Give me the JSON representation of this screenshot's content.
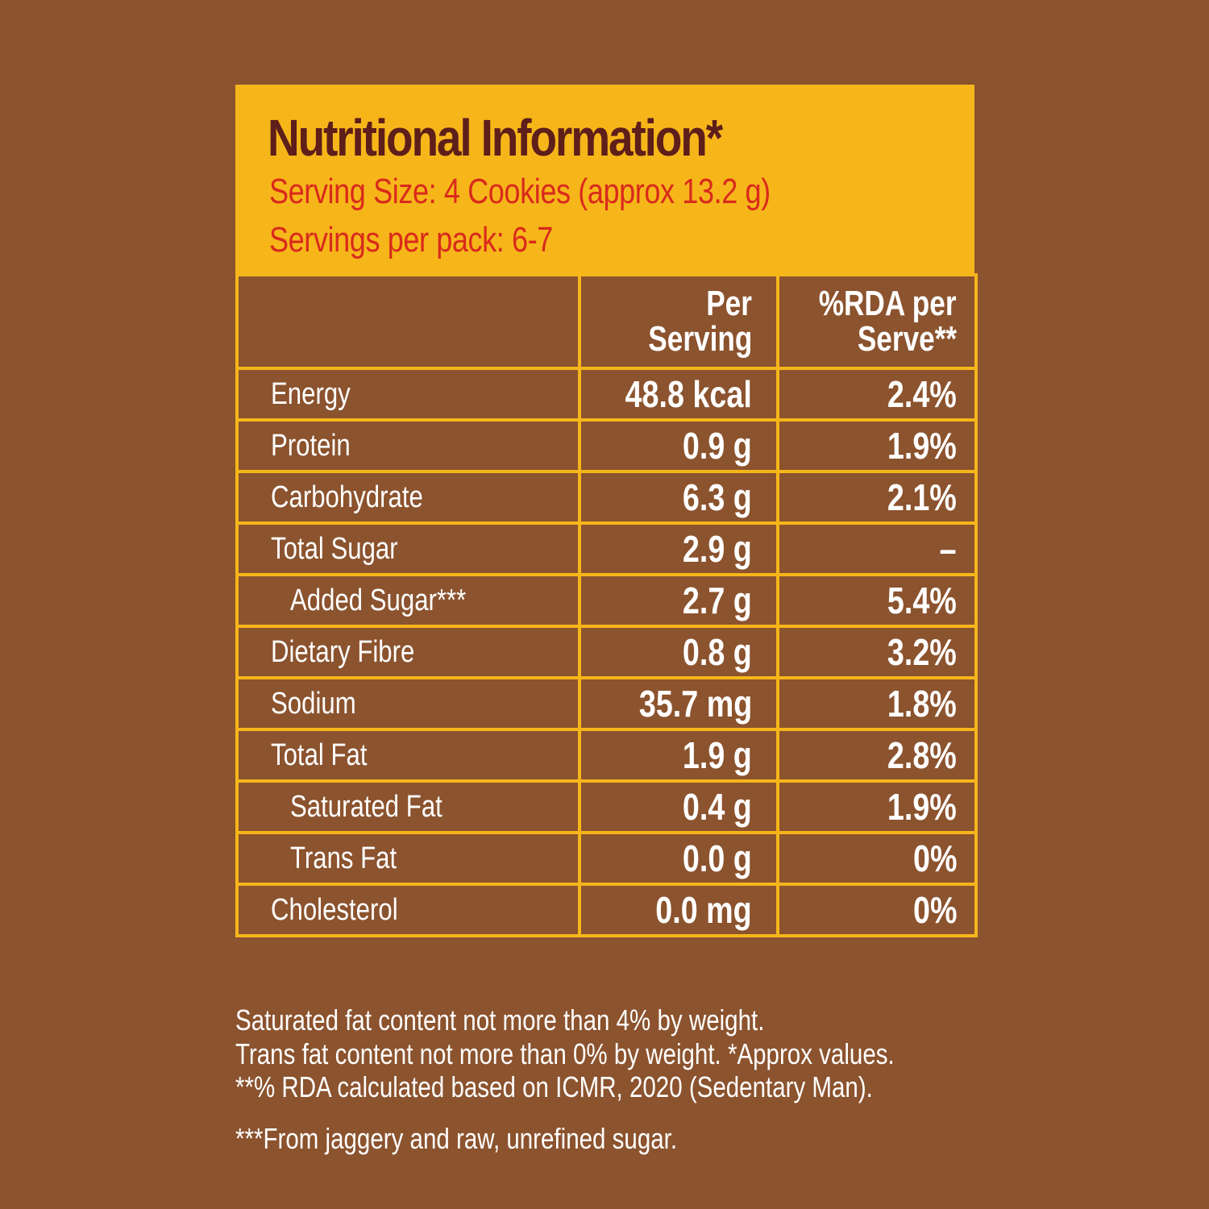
{
  "header": {
    "title": "Nutritional Information*",
    "serving_size": "Serving Size: 4 Cookies (approx 13.2 g)",
    "servings_per_pack": "Servings per pack: 6-7"
  },
  "table": {
    "columns": [
      "",
      "Per Serving",
      "%RDA per Serve**"
    ],
    "col2_line1": "Per",
    "col2_line2": "Serving",
    "col3_line1": "%RDA per",
    "col3_line2": "Serve**",
    "rows": [
      {
        "name": "Energy",
        "per_serving": "48.8 kcal",
        "rda": "2.4%"
      },
      {
        "name": "Protein",
        "per_serving": "0.9 g",
        "rda": "1.9%"
      },
      {
        "name": "Carbohydrate",
        "per_serving": "6.3 g",
        "rda": "2.1%"
      },
      {
        "name": "Total Sugar",
        "per_serving": "2.9 g",
        "rda": "–"
      },
      {
        "name": "Added Sugar***",
        "per_serving": "2.7 g",
        "rda": "5.4%"
      },
      {
        "name": "Dietary Fibre",
        "per_serving": "0.8 g",
        "rda": "3.2%"
      },
      {
        "name": "Sodium",
        "per_serving": "35.7 mg",
        "rda": "1.8%"
      },
      {
        "name": "Total Fat",
        "per_serving": "1.9 g",
        "rda": "2.8%"
      },
      {
        "name": "Saturated Fat",
        "per_serving": "0.4 g",
        "rda": "1.9%"
      },
      {
        "name": "Trans Fat",
        "per_serving": "0.0 g",
        "rda": "0%"
      },
      {
        "name": "Cholesterol",
        "per_serving": "0.0 mg",
        "rda": "0%"
      }
    ]
  },
  "footnotes": {
    "line1": "Saturated fat content not more than 4% by weight.",
    "line2": "Trans fat content not more than 0% by weight. *Approx values.",
    "line3": "**% RDA calculated based on ICMR, 2020 (Sedentary Man).",
    "line4": "***From jaggery and raw, unrefined sugar."
  },
  "colors": {
    "background": "#8B532E",
    "accent": "#F6B61A",
    "title": "#5E1E1A",
    "subtitle": "#D92A1C"
  }
}
